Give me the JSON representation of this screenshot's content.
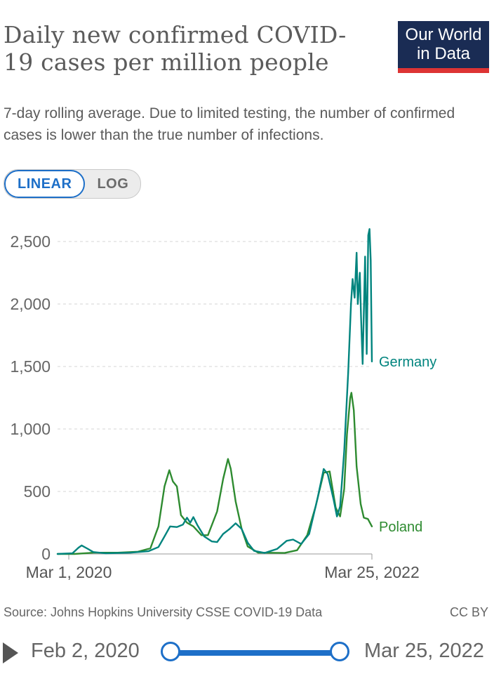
{
  "header": {
    "title": "Daily new confirmed COVID-19 cases per million people",
    "subtitle": "7-day rolling average. Due to limited testing, the number of confirmed cases is lower than the true number of infections.",
    "logo_line1": "Our World",
    "logo_line2": "in Data"
  },
  "scale_toggle": {
    "linear_label": "LINEAR",
    "log_label": "LOG",
    "selected": "LINEAR"
  },
  "footer": {
    "source": "Source: Johns Hopkins University CSSE COVID-19 Data",
    "license": "CC BY"
  },
  "timeline": {
    "start_label": "Feb 2, 2020",
    "end_label": "Mar 25, 2022",
    "start_fraction": 0,
    "end_fraction": 1
  },
  "colors": {
    "germany": "#00847e",
    "poland": "#2e8b30",
    "accent": "#1d6fc8",
    "logo_bg": "#1a2c54",
    "logo_bar": "#dd3434"
  },
  "chart_data": {
    "type": "line",
    "title": "Daily new confirmed COVID-19 cases per million people",
    "subtitle": "7-day rolling average. Due to limited testing, the number of confirmed cases is lower than the true number of infections.",
    "xlabel": "",
    "ylabel": "",
    "ylim": [
      0,
      2600
    ],
    "xlim": [
      "2020-02-02",
      "2022-03-25"
    ],
    "y_ticks": [
      0,
      500,
      1000,
      1500,
      2000,
      2500
    ],
    "y_tick_labels": [
      "0",
      "500",
      "1,000",
      "1,500",
      "2,000",
      "2,500"
    ],
    "x_ticks": [
      "2020-03-01",
      "2022-03-25"
    ],
    "x_tick_labels": [
      "Mar 1, 2020",
      "Mar 25, 2022"
    ],
    "grid": "horizontal dashed",
    "legend": "line end labels",
    "series": [
      {
        "name": "Germany",
        "color": "#00847e",
        "points": [
          [
            "2020-02-02",
            0
          ],
          [
            "2020-03-10",
            5
          ],
          [
            "2020-03-25",
            50
          ],
          [
            "2020-04-02",
            68
          ],
          [
            "2020-04-15",
            45
          ],
          [
            "2020-05-01",
            15
          ],
          [
            "2020-06-01",
            5
          ],
          [
            "2020-08-01",
            10
          ],
          [
            "2020-09-15",
            22
          ],
          [
            "2020-10-10",
            55
          ],
          [
            "2020-10-25",
            140
          ],
          [
            "2020-11-08",
            220
          ],
          [
            "2020-11-25",
            215
          ],
          [
            "2020-12-10",
            235
          ],
          [
            "2020-12-20",
            290
          ],
          [
            "2020-12-28",
            250
          ],
          [
            "2021-01-05",
            295
          ],
          [
            "2021-01-15",
            230
          ],
          [
            "2021-02-01",
            140
          ],
          [
            "2021-02-20",
            100
          ],
          [
            "2021-03-05",
            95
          ],
          [
            "2021-03-20",
            160
          ],
          [
            "2021-04-05",
            200
          ],
          [
            "2021-04-20",
            245
          ],
          [
            "2021-05-05",
            200
          ],
          [
            "2021-05-20",
            90
          ],
          [
            "2021-06-05",
            25
          ],
          [
            "2021-07-01",
            8
          ],
          [
            "2021-08-01",
            40
          ],
          [
            "2021-08-25",
            105
          ],
          [
            "2021-09-10",
            115
          ],
          [
            "2021-09-30",
            80
          ],
          [
            "2021-10-20",
            160
          ],
          [
            "2021-11-10",
            450
          ],
          [
            "2021-11-25",
            680
          ],
          [
            "2021-12-05",
            640
          ],
          [
            "2021-12-20",
            430
          ],
          [
            "2021-12-28",
            300
          ],
          [
            "2022-01-05",
            380
          ],
          [
            "2022-01-15",
            820
          ],
          [
            "2022-01-25",
            1450
          ],
          [
            "2022-02-01",
            2000
          ],
          [
            "2022-02-05",
            2200
          ],
          [
            "2022-02-10",
            2050
          ],
          [
            "2022-02-15",
            2410
          ],
          [
            "2022-02-18",
            2000
          ],
          [
            "2022-02-23",
            2250
          ],
          [
            "2022-02-26",
            1900
          ],
          [
            "2022-03-02",
            1520
          ],
          [
            "2022-03-08",
            2380
          ],
          [
            "2022-03-12",
            1600
          ],
          [
            "2022-03-16",
            2550
          ],
          [
            "2022-03-19",
            2600
          ],
          [
            "2022-03-22",
            2350
          ],
          [
            "2022-03-25",
            1540
          ]
        ]
      },
      {
        "name": "Poland",
        "color": "#2e8b30",
        "points": [
          [
            "2020-02-02",
            0
          ],
          [
            "2020-03-15",
            0
          ],
          [
            "2020-05-01",
            10
          ],
          [
            "2020-07-01",
            10
          ],
          [
            "2020-08-20",
            18
          ],
          [
            "2020-09-20",
            45
          ],
          [
            "2020-10-10",
            220
          ],
          [
            "2020-10-25",
            540
          ],
          [
            "2020-11-06",
            670
          ],
          [
            "2020-11-15",
            580
          ],
          [
            "2020-11-25",
            540
          ],
          [
            "2020-12-05",
            310
          ],
          [
            "2020-12-20",
            250
          ],
          [
            "2021-01-05",
            220
          ],
          [
            "2021-01-25",
            150
          ],
          [
            "2021-02-10",
            150
          ],
          [
            "2021-03-05",
            340
          ],
          [
            "2021-03-20",
            600
          ],
          [
            "2021-04-01",
            760
          ],
          [
            "2021-04-08",
            680
          ],
          [
            "2021-04-20",
            420
          ],
          [
            "2021-05-05",
            200
          ],
          [
            "2021-05-20",
            60
          ],
          [
            "2021-06-15",
            10
          ],
          [
            "2021-08-20",
            8
          ],
          [
            "2021-09-20",
            30
          ],
          [
            "2021-10-15",
            150
          ],
          [
            "2021-11-05",
            380
          ],
          [
            "2021-11-25",
            650
          ],
          [
            "2021-12-10",
            660
          ],
          [
            "2021-12-25",
            370
          ],
          [
            "2022-01-05",
            300
          ],
          [
            "2022-01-15",
            520
          ],
          [
            "2022-01-22",
            960
          ],
          [
            "2022-01-30",
            1250
          ],
          [
            "2022-02-02",
            1290
          ],
          [
            "2022-02-08",
            1150
          ],
          [
            "2022-02-15",
            700
          ],
          [
            "2022-02-25",
            400
          ],
          [
            "2022-03-05",
            290
          ],
          [
            "2022-03-15",
            280
          ],
          [
            "2022-03-25",
            220
          ]
        ]
      }
    ]
  }
}
